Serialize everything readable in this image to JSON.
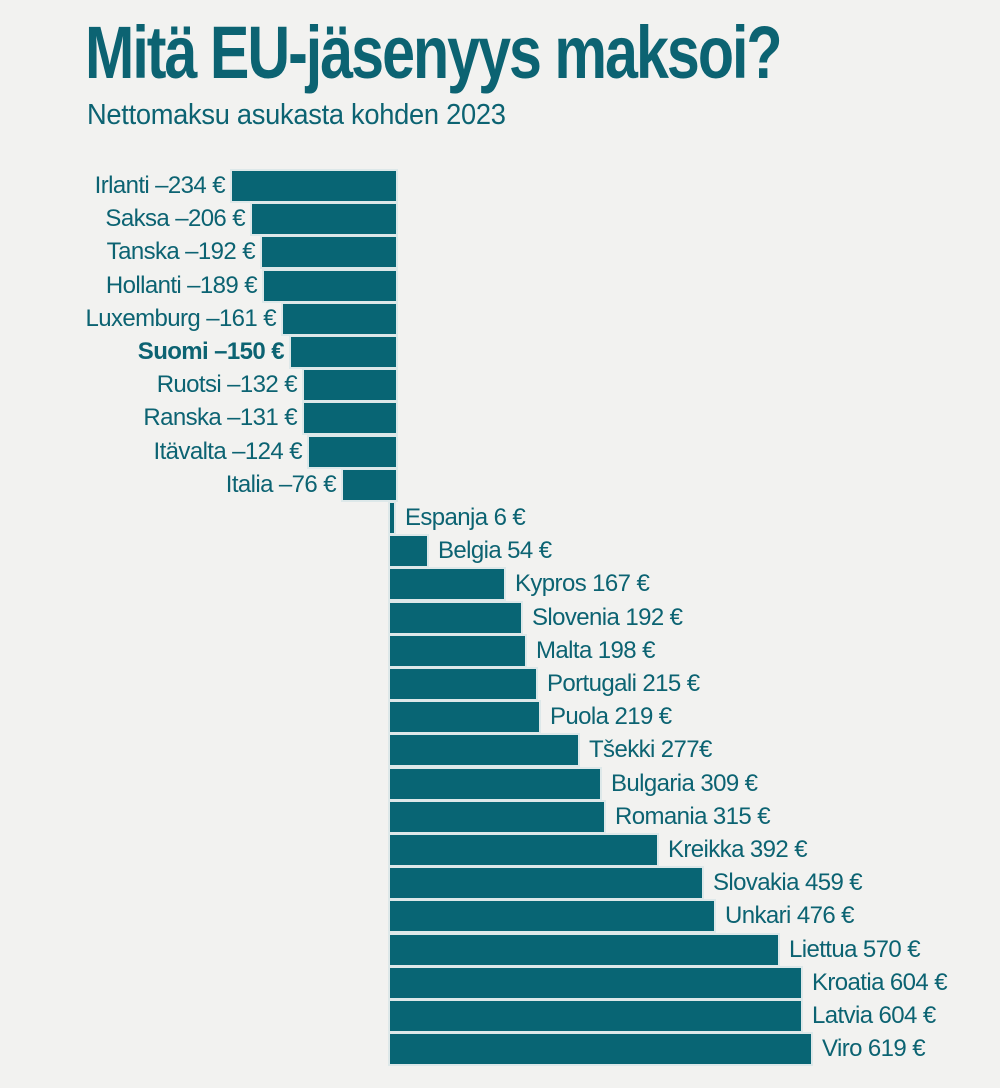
{
  "header": {
    "title": "Mitä EU-jäsenyys maksoi?",
    "subtitle": "Nettomaksu asukasta kohden 2023"
  },
  "chart_data": {
    "type": "bar",
    "orientation": "horizontal-diverging",
    "title": "Mitä EU-jäsenyys maksoi?",
    "subtitle": "Nettomaksu asukasta kohden 2023",
    "unit": "€ / asukas",
    "xlim": [
      -234,
      619
    ],
    "grid": false,
    "legend": false,
    "bar_color": "#086574",
    "text_color": "#0c6372",
    "background_color": "#f2f2f0",
    "highlight_category": "Suomi",
    "rows": [
      {
        "country": "Irlanti",
        "value": -234,
        "label": "Irlanti –234 €",
        "bold": false
      },
      {
        "country": "Saksa",
        "value": -206,
        "label": "Saksa –206 €",
        "bold": false
      },
      {
        "country": "Tanska",
        "value": -192,
        "label": "Tanska –192 €",
        "bold": false
      },
      {
        "country": "Hollanti",
        "value": -189,
        "label": "Hollanti –189 €",
        "bold": false
      },
      {
        "country": "Luxemburg",
        "value": -161,
        "label": "Luxemburg –161 €",
        "bold": false
      },
      {
        "country": "Suomi",
        "value": -150,
        "label": "Suomi –150 €",
        "bold": true
      },
      {
        "country": "Ruotsi",
        "value": -132,
        "label": "Ruotsi –132 €",
        "bold": false
      },
      {
        "country": "Ranska",
        "value": -131,
        "label": "Ranska –131 €",
        "bold": false
      },
      {
        "country": "Itävalta",
        "value": -124,
        "label": "Itävalta –124 €",
        "bold": false
      },
      {
        "country": "Italia",
        "value": -76,
        "label": "Italia –76 €",
        "bold": false
      },
      {
        "country": "Espanja",
        "value": 6,
        "label": "Espanja 6 €",
        "bold": false
      },
      {
        "country": "Belgia",
        "value": 54,
        "label": "Belgia 54 €",
        "bold": false
      },
      {
        "country": "Kypros",
        "value": 167,
        "label": "Kypros 167 €",
        "bold": false
      },
      {
        "country": "Slovenia",
        "value": 192,
        "label": "Slovenia 192 €",
        "bold": false
      },
      {
        "country": "Malta",
        "value": 198,
        "label": "Malta 198 €",
        "bold": false
      },
      {
        "country": "Portugali",
        "value": 215,
        "label": "Portugali 215 €",
        "bold": false
      },
      {
        "country": "Puola",
        "value": 219,
        "label": "Puola 219 €",
        "bold": false
      },
      {
        "country": "Tšekki",
        "value": 277,
        "label": "Tšekki 277€",
        "bold": false
      },
      {
        "country": "Bulgaria",
        "value": 309,
        "label": "Bulgaria 309 €",
        "bold": false
      },
      {
        "country": "Romania",
        "value": 315,
        "label": "Romania 315 €",
        "bold": false
      },
      {
        "country": "Kreikka",
        "value": 392,
        "label": "Kreikka 392 €",
        "bold": false
      },
      {
        "country": "Slovakia",
        "value": 459,
        "label": "Slovakia 459 €",
        "bold": false
      },
      {
        "country": "Unkari",
        "value": 476,
        "label": "Unkari 476 €",
        "bold": false
      },
      {
        "country": "Liettua",
        "value": 570,
        "label": "Liettua 570 €",
        "bold": false
      },
      {
        "country": "Kroatia",
        "value": 604,
        "label": "Kroatia 604 €",
        "bold": false
      },
      {
        "country": "Latvia",
        "value": 604,
        "label": "Latvia 604 €",
        "bold": false
      },
      {
        "country": "Viro",
        "value": 619,
        "label": "Viro 619 €",
        "bold": false
      }
    ]
  }
}
